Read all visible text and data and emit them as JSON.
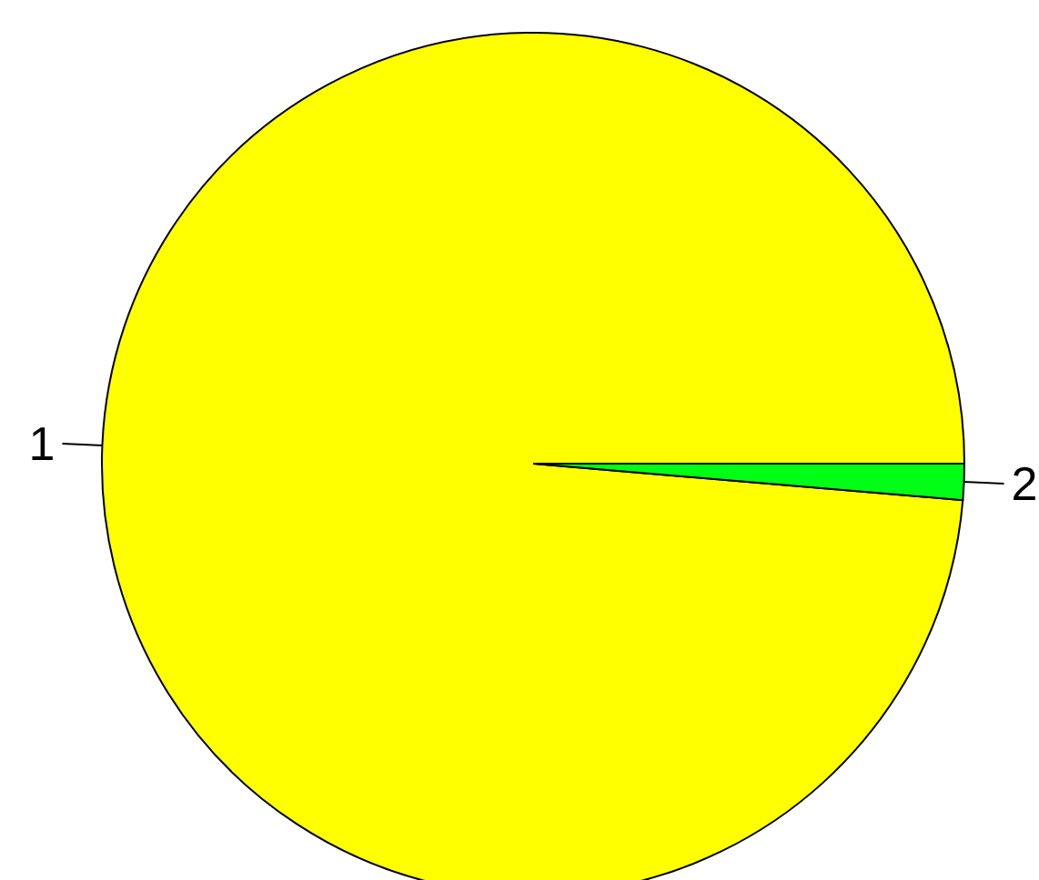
{
  "chart_data": {
    "type": "pie",
    "categories": [
      "1",
      "2"
    ],
    "values": [
      98.65,
      1.35
    ],
    "colors": [
      "#ffff00",
      "#00ff14"
    ]
  }
}
